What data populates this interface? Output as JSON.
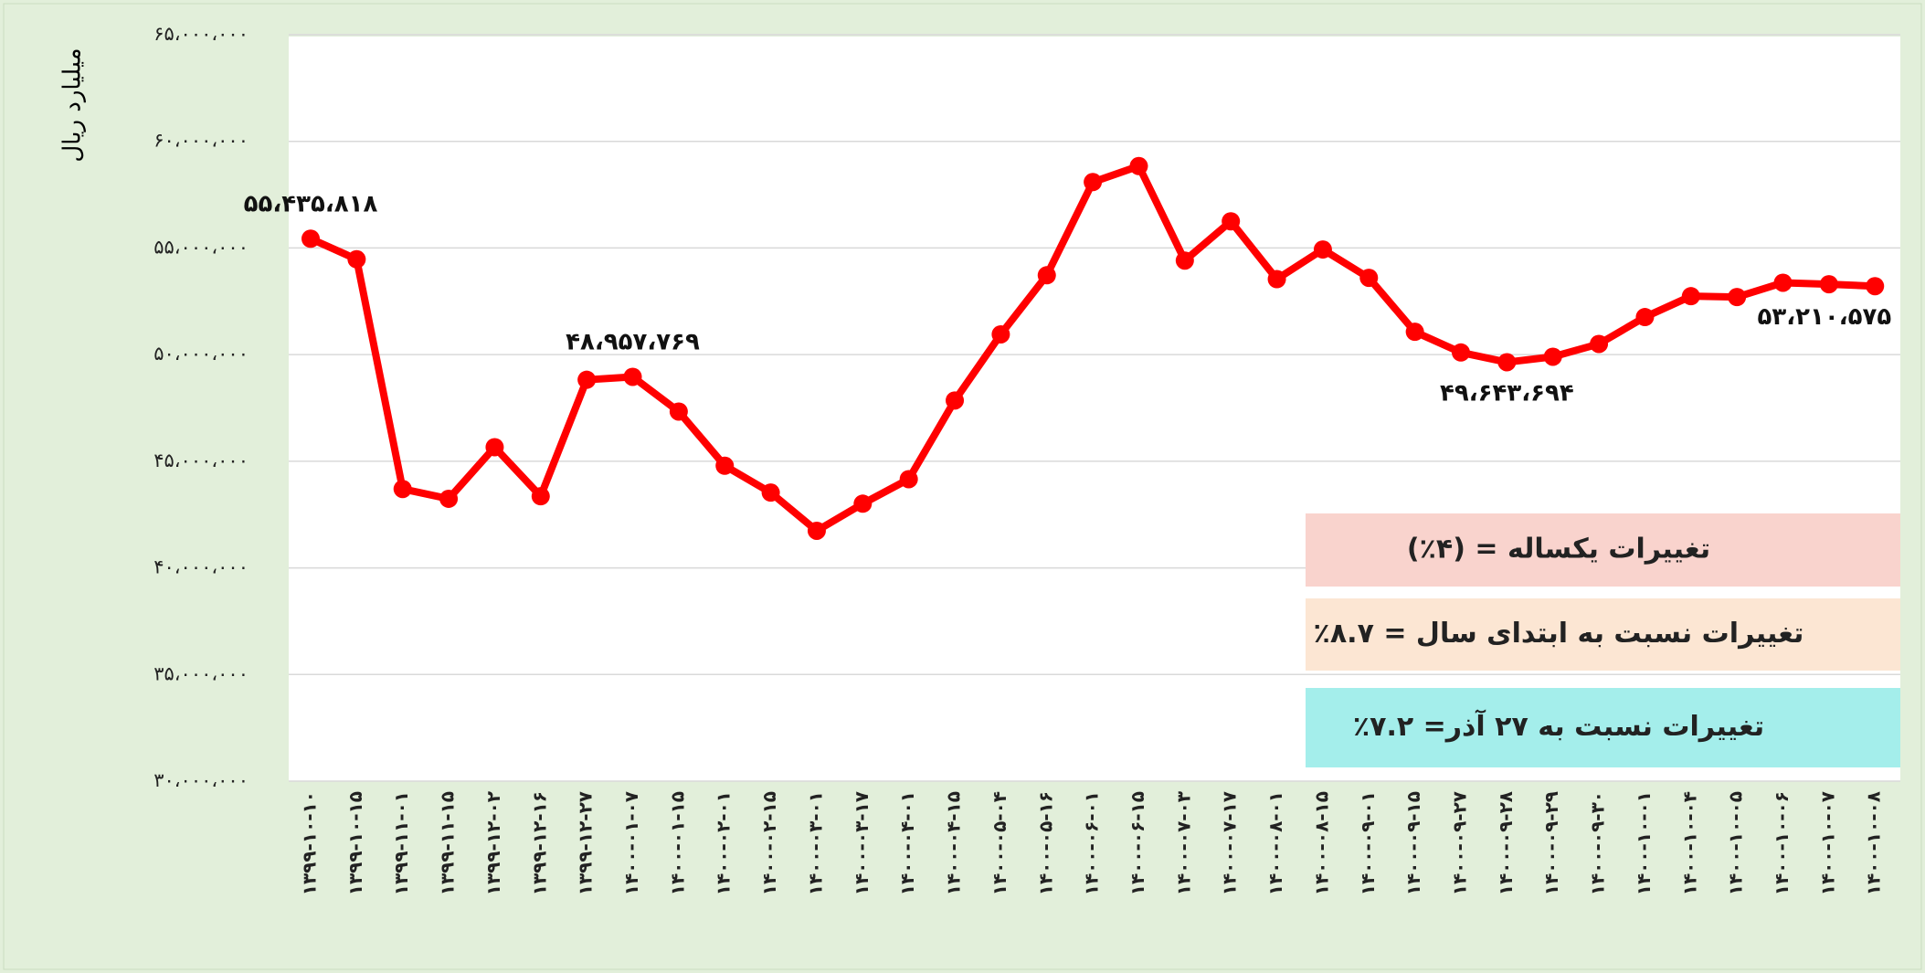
{
  "chart_data": {
    "type": "line",
    "y_label": "میلیارد ریال",
    "color": "#ff0000",
    "grid": true,
    "ylim": [
      30000000,
      65000000
    ],
    "yticks": [
      {
        "value": 30000000,
        "label": "۳۰،۰۰۰،۰۰۰"
      },
      {
        "value": 35000000,
        "label": "۳۵،۰۰۰،۰۰۰"
      },
      {
        "value": 40000000,
        "label": "۴۰،۰۰۰،۰۰۰"
      },
      {
        "value": 45000000,
        "label": "۴۵،۰۰۰،۰۰۰"
      },
      {
        "value": 50000000,
        "label": "۵۰،۰۰۰،۰۰۰"
      },
      {
        "value": 55000000,
        "label": "۵۵،۰۰۰،۰۰۰"
      },
      {
        "value": 60000000,
        "label": "۶۰،۰۰۰،۰۰۰"
      },
      {
        "value": 65000000,
        "label": "۶۵،۰۰۰،۰۰۰"
      }
    ],
    "categories": [
      "۱۳۹۹-۱۰-۱۰",
      "۱۳۹۹-۱۰-۱۵",
      "۱۳۹۹-۱۱-۰۱",
      "۱۳۹۹-۱۱-۱۵",
      "۱۳۹۹-۱۲-۰۲",
      "۱۳۹۹-۱۲-۱۶",
      "۱۳۹۹-۱۲-۲۷",
      "۱۴۰۰-۰۱-۰۷",
      "۱۴۰۰-۰۱-۱۵",
      "۱۴۰۰-۰۲-۰۱",
      "۱۴۰۰-۰۲-۱۵",
      "۱۴۰۰-۰۳-۰۱",
      "۱۴۰۰-۰۳-۱۷",
      "۱۴۰۰-۰۴-۰۱",
      "۱۴۰۰-۰۴-۱۵",
      "۱۴۰۰-۰۵-۰۴",
      "۱۴۰۰-۰۵-۱۶",
      "۱۴۰۰-۰۶-۰۱",
      "۱۴۰۰-۰۶-۱۵",
      "۱۴۰۰-۰۷-۰۳",
      "۱۴۰۰-۰۷-۱۷",
      "۱۴۰۰-۰۸-۰۱",
      "۱۴۰۰-۰۸-۱۵",
      "۱۴۰۰-۰۹-۰۱",
      "۱۴۰۰-۰۹-۱۵",
      "۱۴۰۰-۰۹-۲۷",
      "۱۴۰۰-۰۹-۲۸",
      "۱۴۰۰-۰۹-۲۹",
      "۱۴۰۰-۰۹-۳۰",
      "۱۴۰۰-۱۰-۰۱",
      "۱۴۰۰-۱۰-۰۴",
      "۱۴۰۰-۱۰-۰۵",
      "۱۴۰۰-۱۰-۰۶",
      "۱۴۰۰-۱۰-۰۷",
      "۱۴۰۰-۱۰-۰۸"
    ],
    "values": [
      55435818,
      54470000,
      43700000,
      43240000,
      45660000,
      43360000,
      48820000,
      48957769,
      47330000,
      44790000,
      43530000,
      41740000,
      43010000,
      44160000,
      47850000,
      50950000,
      53720000,
      58090000,
      58840000,
      54410000,
      56250000,
      53540000,
      54930000,
      53600000,
      51070000,
      50100000,
      49643694,
      49900000,
      50500000,
      51760000,
      52740000,
      52700000,
      53370000,
      53300000,
      53210575
    ],
    "value_labels": [
      "۵۵،۴۳۵،۸۱۸",
      null,
      null,
      null,
      null,
      null,
      null,
      "۴۸،۹۵۷،۷۶۹",
      null,
      null,
      null,
      null,
      null,
      null,
      null,
      null,
      null,
      null,
      null,
      null,
      null,
      null,
      null,
      null,
      null,
      null,
      "۴۹،۶۴۳،۶۹۴",
      null,
      null,
      null,
      null,
      null,
      null,
      null,
      "۵۳،۲۱۰،۵۷۵"
    ],
    "annotations": [
      {
        "text": "تغییرات یکساله = (۴٪)",
        "color": "#f9d3cd"
      },
      {
        "text": "تغییرات نسبت به ابتدای سال = ۸.۷٪",
        "color": "#fce6d3"
      },
      {
        "text": "تغییرات نسبت به ۲۷ آذر= ۷.۲٪",
        "color": "#a4eeeb"
      }
    ]
  }
}
